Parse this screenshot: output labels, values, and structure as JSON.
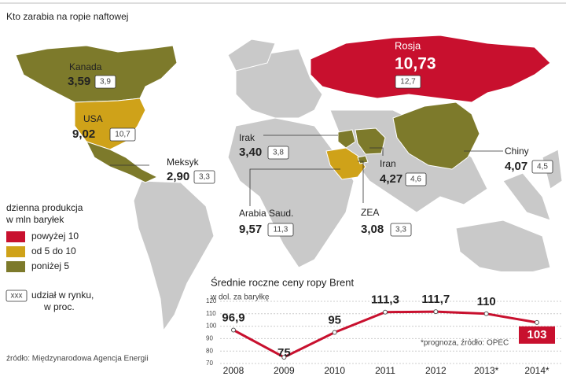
{
  "title": "Kto zarabia na ropie naftowej",
  "countries": [
    {
      "name": "Kanada",
      "production": "3,59",
      "share": "3,9",
      "color": "#7d7a2b"
    },
    {
      "name": "USA",
      "production": "9,02",
      "share": "10,7",
      "color": "#cfa219"
    },
    {
      "name": "Meksyk",
      "production": "2,90",
      "share": "3,3",
      "color": "#7d7a2b"
    },
    {
      "name": "Rosja",
      "production": "10,73",
      "share": "12,7",
      "color": "#c8102e"
    },
    {
      "name": "Irak",
      "production": "3,40",
      "share": "3,8",
      "color": "#7d7a2b"
    },
    {
      "name": "Arabia Saud.",
      "production": "9,57",
      "share": "11,3",
      "color": "#cfa219"
    },
    {
      "name": "Iran",
      "production": "4,27",
      "share": "4,6",
      "color": "#7d7a2b"
    },
    {
      "name": "ZEA",
      "production": "3,08",
      "share": "3,3",
      "color": "#7d7a2b"
    },
    {
      "name": "Chiny",
      "production": "4,07",
      "share": "4,5",
      "color": "#7d7a2b"
    }
  ],
  "legend": {
    "title": [
      "dzienna produkcja",
      "w mln baryłek"
    ],
    "items": [
      {
        "label": "powyżej 10",
        "color": "#c8102e"
      },
      {
        "label": "od 5 do 10",
        "color": "#cfa219"
      },
      {
        "label": "poniżej 5",
        "color": "#7d7a2b"
      }
    ],
    "share_key": "xxx",
    "share_text": [
      "udział w rynku,",
      "w proc."
    ]
  },
  "source": "źródło: Międzynarodowa Agencja Energii",
  "chart_data": {
    "type": "line",
    "title": "Średnie roczne ceny ropy Brent",
    "subtitle": "w dol. za baryłkę",
    "annotation": "*prognoza, źródło: OPEC",
    "categories": [
      "2008",
      "2009",
      "2010",
      "2011",
      "2012",
      "2013*",
      "2014*"
    ],
    "values": [
      96.9,
      75,
      95,
      111.3,
      111.7,
      110,
      103
    ],
    "value_labels": [
      "96,9",
      "75",
      "95",
      "111,3",
      "111,7",
      "110",
      "103"
    ],
    "color": "#c8102e",
    "ylim": [
      70,
      120
    ],
    "yticks": [
      70,
      80,
      90,
      100,
      110,
      120
    ],
    "grid": true
  }
}
